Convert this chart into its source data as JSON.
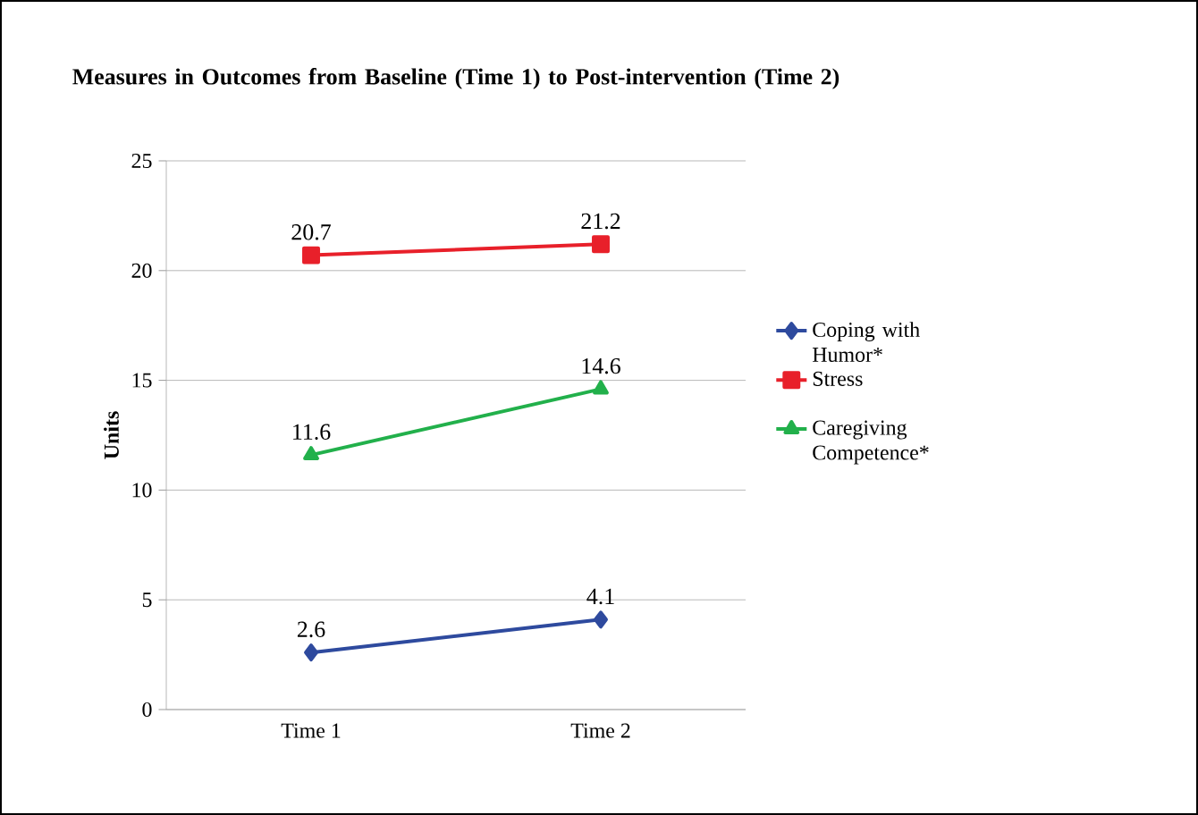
{
  "chart_data": {
    "type": "line",
    "title": "Measures in Outcomes from Baseline (Time 1) to Post-intervention (Time 2)",
    "ylabel": "Units",
    "categories": [
      "Time 1",
      "Time 2"
    ],
    "series": [
      {
        "name": "Coping with Humor*",
        "color": "#2e4a9e",
        "marker": "diamond",
        "values": [
          2.6,
          4.1
        ]
      },
      {
        "name": "Stress",
        "color": "#e8202a",
        "marker": "square",
        "values": [
          20.7,
          21.2
        ]
      },
      {
        "name": "Caregiving Competence*",
        "color": "#22b04b",
        "marker": "triangle",
        "values": [
          11.6,
          14.6
        ]
      }
    ],
    "ylim": [
      0,
      25
    ],
    "yticks": [
      0,
      5,
      10,
      15,
      20,
      25
    ],
    "grid": "y",
    "legend": "right",
    "data_labels": true,
    "line_style": "solid"
  }
}
